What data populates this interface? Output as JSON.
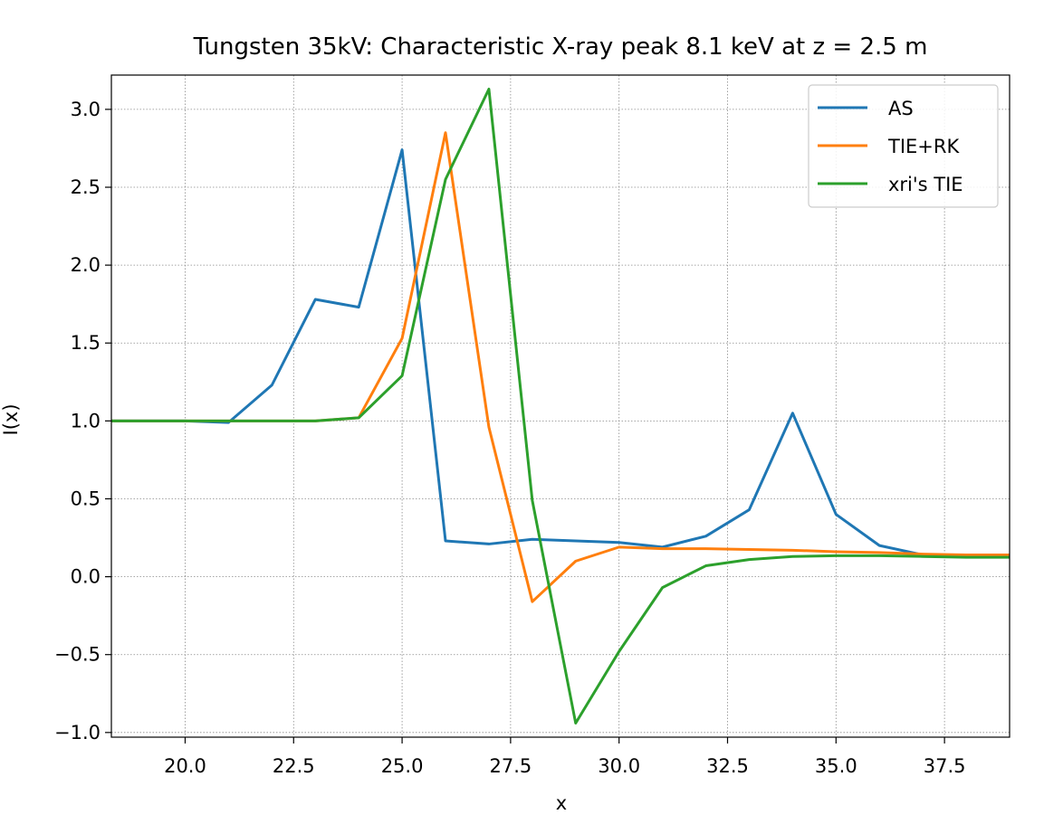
{
  "chart_data": {
    "type": "line",
    "title": "Tungsten 35kV: Characteristic X-ray peak 8.1 keV at z = 2.5 m",
    "xlabel": "x",
    "ylabel": "I(x)",
    "xlim": [
      18.3,
      39.0
    ],
    "ylim": [
      -1.03,
      3.22
    ],
    "xticks": [
      20.0,
      22.5,
      25.0,
      27.5,
      30.0,
      32.5,
      35.0,
      37.5
    ],
    "xtick_labels": [
      "20.0",
      "22.5",
      "25.0",
      "27.5",
      "30.0",
      "32.5",
      "35.0",
      "37.5"
    ],
    "yticks": [
      -1.0,
      -0.5,
      0.0,
      0.5,
      1.0,
      1.5,
      2.0,
      2.5,
      3.0
    ],
    "ytick_labels": [
      "−1.0",
      "−0.5",
      "0.0",
      "0.5",
      "1.0",
      "1.5",
      "2.0",
      "2.5",
      "3.0"
    ],
    "grid": true,
    "legend_position": "top-right",
    "series": [
      {
        "name": "AS",
        "color": "#1f77b4",
        "x": [
          18,
          19,
          20,
          21,
          22,
          23,
          24,
          25,
          26,
          27,
          28,
          29,
          30,
          31,
          32,
          33,
          34,
          35,
          36,
          37,
          38,
          39
        ],
        "y": [
          1.0,
          1.0,
          1.0,
          0.99,
          1.23,
          1.78,
          1.73,
          2.74,
          0.23,
          0.21,
          0.24,
          0.23,
          0.22,
          0.19,
          0.26,
          0.43,
          1.05,
          0.4,
          0.2,
          0.14,
          0.13,
          0.13
        ]
      },
      {
        "name": "TIE+RK",
        "color": "#ff7f0e",
        "x": [
          18,
          19,
          20,
          21,
          22,
          23,
          24,
          25,
          26,
          27,
          28,
          29,
          30,
          31,
          32,
          33,
          34,
          35,
          36,
          37,
          38,
          39
        ],
        "y": [
          1.0,
          1.0,
          1.0,
          1.0,
          1.0,
          1.0,
          1.02,
          1.53,
          2.85,
          0.96,
          -0.16,
          0.1,
          0.19,
          0.18,
          0.18,
          0.175,
          0.17,
          0.16,
          0.155,
          0.145,
          0.14,
          0.14
        ]
      },
      {
        "name": "xri's TIE",
        "color": "#2ca02c",
        "x": [
          18,
          19,
          20,
          21,
          22,
          23,
          24,
          25,
          26,
          27,
          28,
          29,
          30,
          31,
          32,
          33,
          34,
          35,
          36,
          37,
          38,
          39
        ],
        "y": [
          1.0,
          1.0,
          1.0,
          1.0,
          1.0,
          1.0,
          1.02,
          1.29,
          2.55,
          3.13,
          0.49,
          -0.94,
          -0.48,
          -0.07,
          0.07,
          0.11,
          0.13,
          0.135,
          0.135,
          0.13,
          0.125,
          0.125
        ]
      }
    ]
  }
}
